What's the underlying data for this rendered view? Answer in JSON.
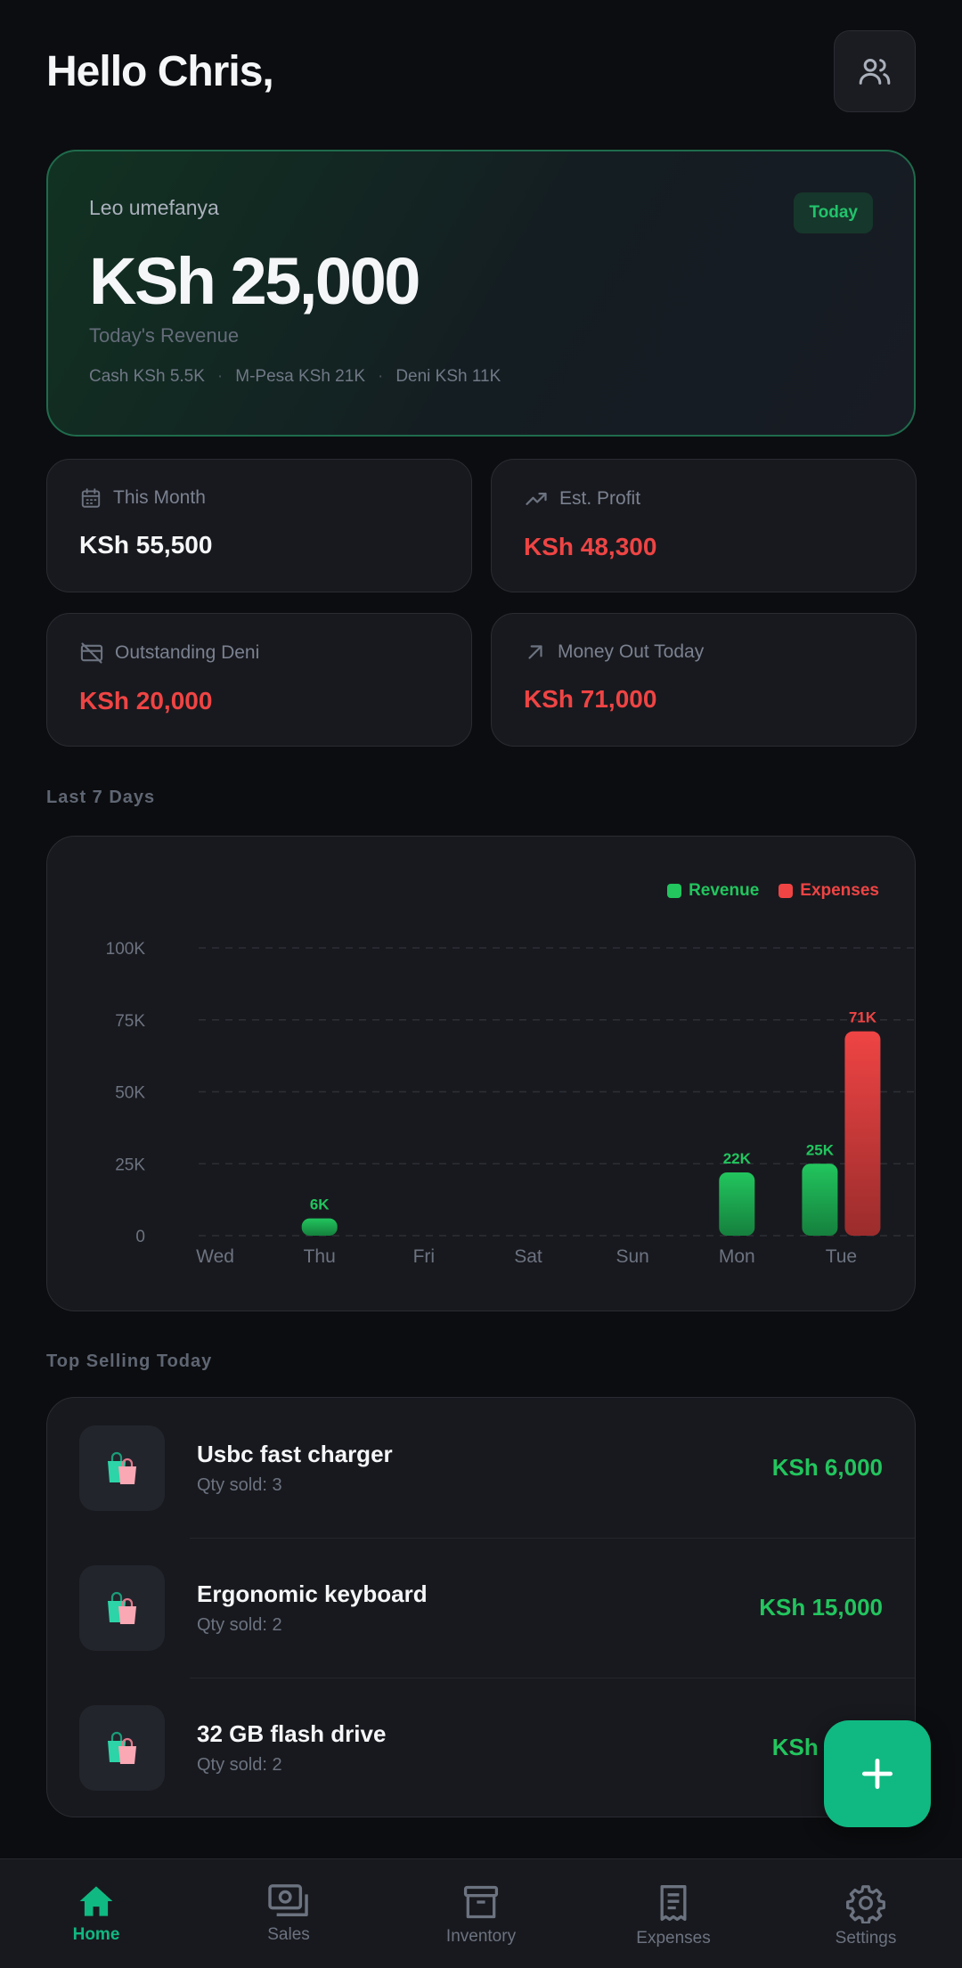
{
  "header": {
    "greeting": "Hello Chris,",
    "profile_icon": "users-icon"
  },
  "hero": {
    "label": "Leo umefanya",
    "badge": "Today",
    "amount": "KSh 25,000",
    "subtitle": "Today's Revenue",
    "breakdown": [
      "Cash KSh 5.5K",
      "M-Pesa KSh 21K",
      "Deni KSh 11K"
    ],
    "separator": "·"
  },
  "stats": [
    {
      "label": "This Month",
      "value": "KSh 55,500",
      "icon": "calendar-icon"
    },
    {
      "label": "Est. Profit",
      "value": "KSh 48,300",
      "icon": "trending-up-icon"
    },
    {
      "label": "Outstanding Deni",
      "value": "KSh 20,000",
      "icon": "credit-card-off-icon"
    },
    {
      "label": "Money Out Today",
      "value": "KSh 71,000",
      "icon": "arrow-up-right-icon"
    }
  ],
  "colors": {
    "revenue": "#22c55e",
    "expenses": "#ef4444",
    "accent": "#10b981"
  },
  "chart_section": {
    "title": "Last 7 Days"
  },
  "chart_data": {
    "type": "bar",
    "categories": [
      "Wed",
      "Thu",
      "Fri",
      "Sat",
      "Sun",
      "Mon",
      "Tue"
    ],
    "series": [
      {
        "name": "Revenue",
        "values": [
          0,
          6000,
          0,
          0,
          0,
          22000,
          25000
        ]
      },
      {
        "name": "Expenses",
        "values": [
          0,
          0,
          0,
          0,
          0,
          0,
          71000
        ]
      }
    ],
    "data_labels": {
      "Revenue": [
        null,
        "6K",
        null,
        null,
        null,
        "22K",
        "25K"
      ],
      "Expenses": [
        null,
        null,
        null,
        null,
        null,
        null,
        "71K"
      ]
    },
    "yticks": [
      0,
      25000,
      50000,
      75000,
      100000
    ],
    "ytick_labels": [
      "0",
      "25K",
      "50K",
      "75K",
      "100K"
    ],
    "ylim": [
      0,
      100000
    ],
    "grid": true,
    "legend": "top-right"
  },
  "top_selling": {
    "title": "Top Selling Today",
    "items": [
      {
        "name": "Usbc fast charger",
        "qty": "Qty sold: 3",
        "amount": "KSh 6,000",
        "icon": "shopping-bags-icon"
      },
      {
        "name": "Ergonomic keyboard",
        "qty": "Qty sold: 2",
        "amount": "KSh 15,000",
        "icon": "shopping-bags-icon"
      },
      {
        "name": "32 GB flash drive",
        "qty": "Qty sold: 2",
        "amount": "KSh 6,000",
        "icon": "shopping-bags-icon"
      }
    ]
  },
  "fab": {
    "icon": "plus-icon"
  },
  "nav": {
    "items": [
      {
        "label": "Home",
        "icon": "home-icon",
        "active": true
      },
      {
        "label": "Sales",
        "icon": "cash-icon",
        "active": false
      },
      {
        "label": "Inventory",
        "icon": "archive-box-icon",
        "active": false
      },
      {
        "label": "Expenses",
        "icon": "receipt-icon",
        "active": false
      },
      {
        "label": "Settings",
        "icon": "gear-icon",
        "active": false
      }
    ]
  }
}
